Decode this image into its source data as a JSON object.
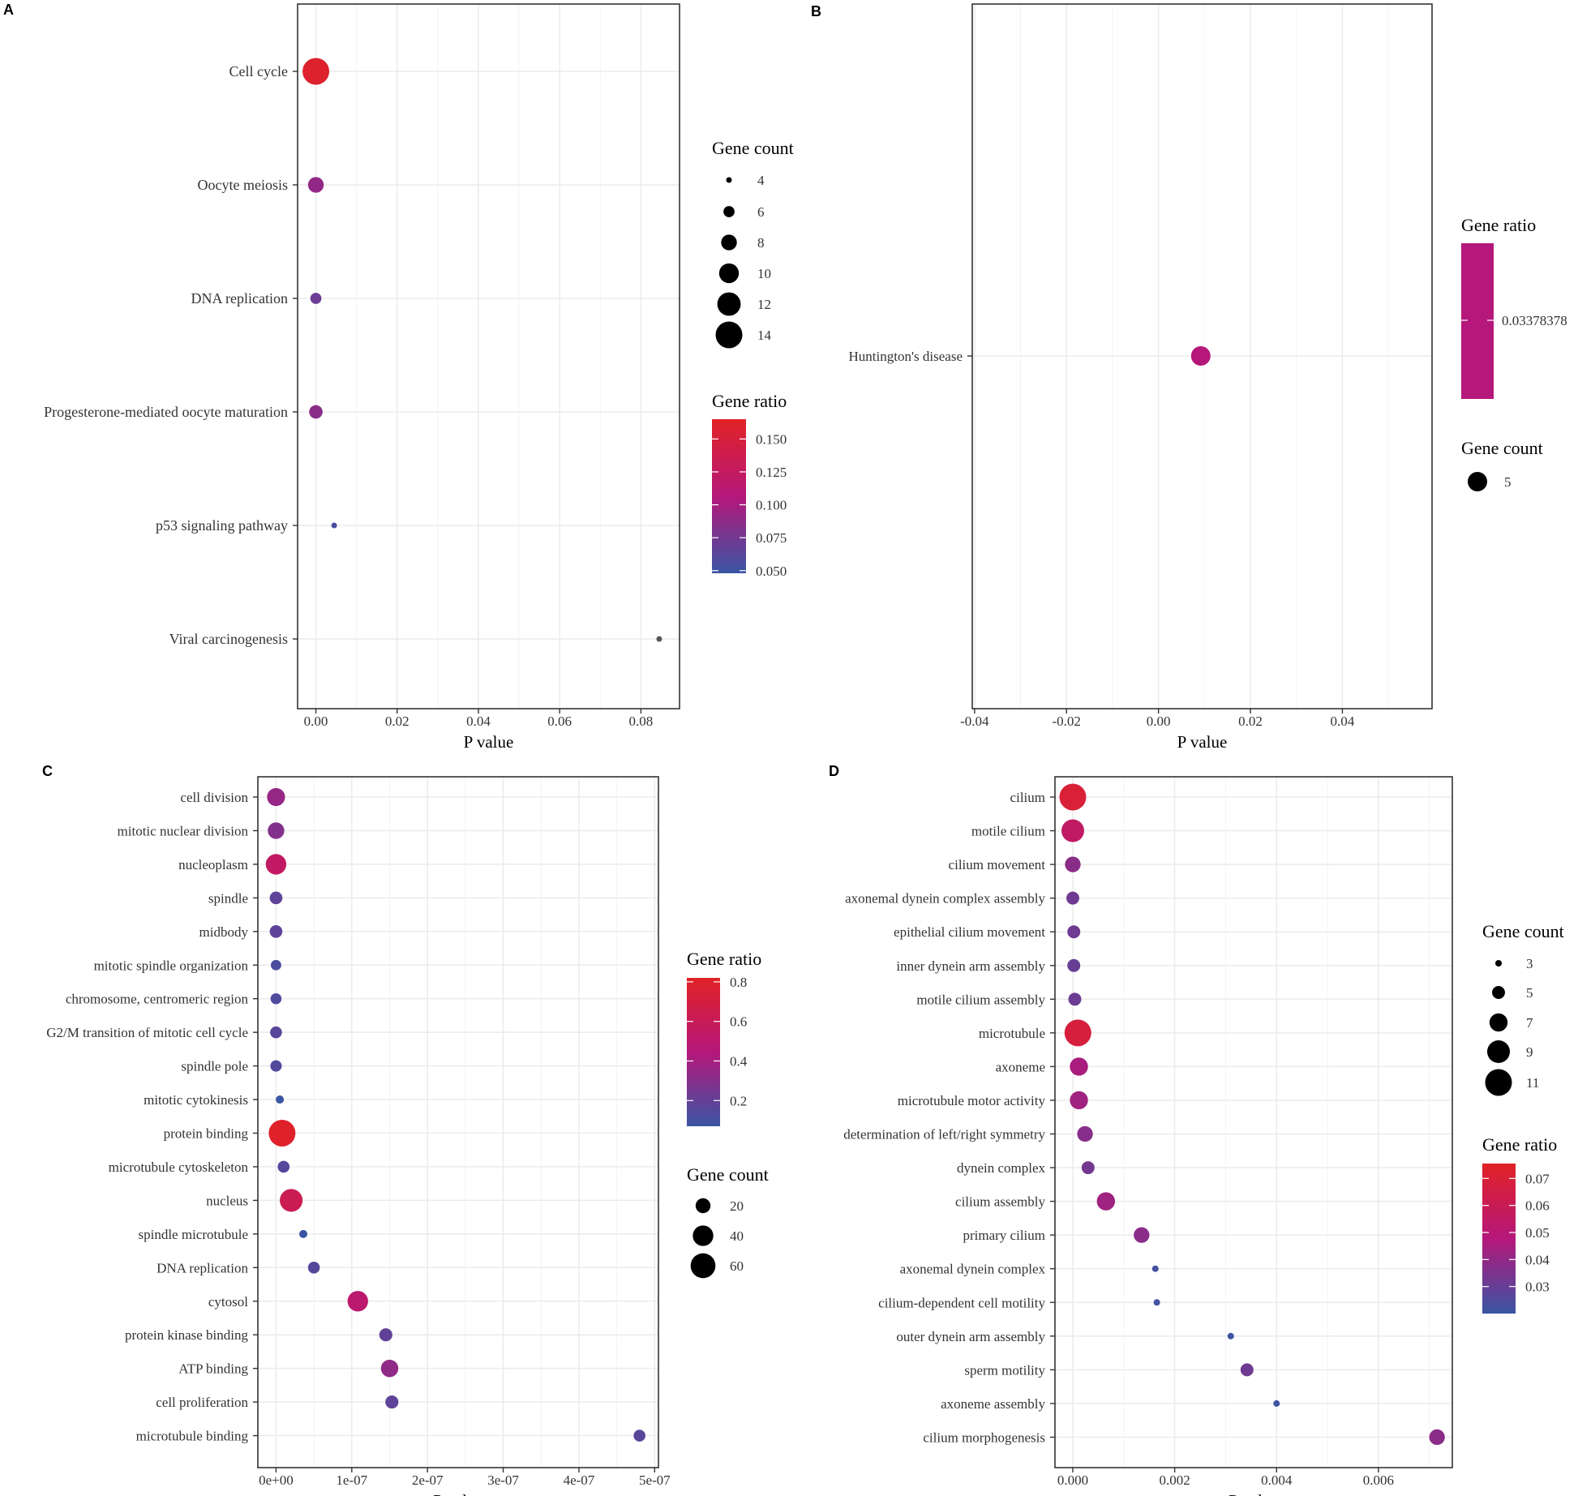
{
  "chart_data": [
    {
      "panel": "A",
      "type": "scatter",
      "xlabel": "P value",
      "xlim": [
        -0.0045,
        0.0895
      ],
      "xticks": [
        0.0,
        0.02,
        0.04,
        0.06,
        0.08
      ],
      "xtick_labels": [
        "0.00",
        "0.02",
        "0.04",
        "0.06",
        "0.08"
      ],
      "categories": [
        "Cell cycle",
        "Oocyte meiosis",
        "DNA replication",
        "Progesterone-mediated oocyte maturation",
        "p53 signaling pathway",
        "Viral carcinogenesis"
      ],
      "points": [
        {
          "term": "Cell cycle",
          "p": 0.0,
          "count": 14,
          "ratio": 0.16
        },
        {
          "term": "Oocyte meiosis",
          "p": 0.0,
          "count": 8,
          "ratio": 0.09
        },
        {
          "term": "DNA replication",
          "p": 0.0,
          "count": 6,
          "ratio": 0.072
        },
        {
          "term": "Progesterone-mediated oocyte maturation",
          "p": 0.0,
          "count": 7,
          "ratio": 0.085
        },
        {
          "term": "p53 signaling pathway",
          "p": 0.0045,
          "count": 4,
          "ratio": 0.055
        },
        {
          "term": "Viral carcinogenesis",
          "p": 0.0845,
          "count": 4,
          "ratio": null
        }
      ],
      "legend_count": {
        "title": "Gene count",
        "values": [
          4,
          6,
          8,
          10,
          12,
          14
        ],
        "labels": [
          "4",
          "6",
          "8",
          "10",
          "12",
          "14"
        ]
      },
      "legend_ratio": {
        "title": "Gene ratio",
        "min": 0.048,
        "max": 0.165,
        "ticks": [
          0.15,
          0.125,
          0.1,
          0.075,
          0.05
        ],
        "tick_labels": [
          "0.150",
          "0.125",
          "0.100",
          "0.075",
          "0.050"
        ]
      }
    },
    {
      "panel": "B",
      "type": "scatter",
      "xlabel": "P value",
      "xlim": [
        -0.0405,
        0.0595
      ],
      "xticks": [
        -0.04,
        -0.02,
        0.0,
        0.02,
        0.04
      ],
      "xtick_labels": [
        "-0.04",
        "-0.02",
        "0.00",
        "0.02",
        "0.04"
      ],
      "categories": [
        "Huntington's disease"
      ],
      "points": [
        {
          "term": "Huntington's disease",
          "p": 0.0092,
          "count": 5,
          "ratio": 0.03378378
        }
      ],
      "legend_ratio": {
        "title": "Gene ratio",
        "single_value": "0.03378378",
        "color": "#b5177a"
      },
      "legend_count": {
        "title": "Gene count",
        "values": [
          5
        ],
        "labels": [
          "5"
        ]
      }
    },
    {
      "panel": "C",
      "type": "scatter",
      "xlabel": "P value",
      "xlim": [
        -2.4e-08,
        5.05e-07
      ],
      "xticks": [
        0,
        1e-07,
        2e-07,
        3e-07,
        4e-07,
        5e-07
      ],
      "xtick_labels": [
        "0e+00",
        "1e-07",
        "2e-07",
        "3e-07",
        "4e-07",
        "5e-07"
      ],
      "categories": [
        "cell division",
        "mitotic nuclear division",
        "nucleoplasm",
        "spindle",
        "midbody",
        "mitotic spindle organization",
        "chromosome, centromeric region",
        "G2/M transition of mitotic cell cycle",
        "spindle pole",
        "mitotic cytokinesis",
        "protein binding",
        "microtubule cytoskeleton",
        "nucleus",
        "spindle microtubule",
        "DNA replication",
        "cytosol",
        "protein kinase binding",
        "ATP binding",
        "cell proliferation",
        "microtubule binding"
      ],
      "points": [
        {
          "term": "cell division",
          "p": 0.0,
          "count": 30,
          "ratio": 0.35
        },
        {
          "term": "mitotic nuclear division",
          "p": 0.0,
          "count": 25,
          "ratio": 0.29
        },
        {
          "term": "nucleoplasm",
          "p": 0.0,
          "count": 40,
          "ratio": 0.55
        },
        {
          "term": "spindle",
          "p": 0.0,
          "count": 14,
          "ratio": 0.18
        },
        {
          "term": "midbody",
          "p": 0.0,
          "count": 14,
          "ratio": 0.18
        },
        {
          "term": "mitotic spindle organization",
          "p": 0.0,
          "count": 9,
          "ratio": 0.12
        },
        {
          "term": "chromosome, centromeric region",
          "p": 0.0,
          "count": 10,
          "ratio": 0.13
        },
        {
          "term": "G2/M transition of mitotic cell cycle",
          "p": 0.0,
          "count": 12,
          "ratio": 0.16
        },
        {
          "term": "spindle pole",
          "p": 0.0,
          "count": 11,
          "ratio": 0.14
        },
        {
          "term": "mitotic cytokinesis",
          "p": 5e-09,
          "count": 5,
          "ratio": 0.07
        },
        {
          "term": "protein binding",
          "p": 8e-09,
          "count": 70,
          "ratio": 0.8
        },
        {
          "term": "microtubule cytoskeleton",
          "p": 1e-08,
          "count": 12,
          "ratio": 0.15
        },
        {
          "term": "nucleus",
          "p": 2e-08,
          "count": 50,
          "ratio": 0.62
        },
        {
          "term": "spindle microtubule",
          "p": 3.6e-08,
          "count": 5,
          "ratio": 0.07
        },
        {
          "term": "DNA replication",
          "p": 5e-08,
          "count": 12,
          "ratio": 0.15
        },
        {
          "term": "cytosol",
          "p": 1.08e-07,
          "count": 40,
          "ratio": 0.5
        },
        {
          "term": "protein kinase binding",
          "p": 1.45e-07,
          "count": 15,
          "ratio": 0.19
        },
        {
          "term": "ATP binding",
          "p": 1.5e-07,
          "count": 28,
          "ratio": 0.33
        },
        {
          "term": "cell proliferation",
          "p": 1.53e-07,
          "count": 15,
          "ratio": 0.18
        },
        {
          "term": "microtubule binding",
          "p": 4.8e-07,
          "count": 12,
          "ratio": 0.16
        }
      ],
      "legend_ratio": {
        "title": "Gene ratio",
        "min": 0.07,
        "max": 0.82,
        "ticks": [
          0.8,
          0.6,
          0.4,
          0.2
        ],
        "tick_labels": [
          "0.8",
          "0.6",
          "0.4",
          "0.2"
        ]
      },
      "legend_count": {
        "title": "Gene count",
        "values": [
          20,
          40,
          60
        ],
        "labels": [
          "20",
          "40",
          "60"
        ]
      }
    },
    {
      "panel": "D",
      "type": "scatter",
      "xlabel": "P value",
      "xlim": [
        -0.00035,
        0.00745
      ],
      "xticks": [
        0.0,
        0.002,
        0.004,
        0.006
      ],
      "xtick_labels": [
        "0.000",
        "0.002",
        "0.004",
        "0.006"
      ],
      "categories": [
        "cilium",
        "motile cilium",
        "cilium movement",
        "axonemal dynein complex assembly",
        "epithelial cilium movement",
        "inner dynein arm assembly",
        "motile cilium assembly",
        "microtubule",
        "axoneme",
        "microtubule motor activity",
        "determination of left/right symmetry",
        "dynein complex",
        "cilium assembly",
        "primary cilium",
        "axonemal dynein complex",
        "cilium-dependent cell motility",
        "outer dynein arm assembly",
        "sperm motility",
        "axoneme assembly",
        "cilium morphogenesis"
      ],
      "points": [
        {
          "term": "cilium",
          "p": 0.0,
          "count": 11,
          "ratio": 0.07
        },
        {
          "term": "motile cilium",
          "p": 0.0,
          "count": 9,
          "ratio": 0.055
        },
        {
          "term": "cilium movement",
          "p": 0.0,
          "count": 6,
          "ratio": 0.038
        },
        {
          "term": "axonemal dynein complex assembly",
          "p": 0.0,
          "count": 5,
          "ratio": 0.032
        },
        {
          "term": "epithelial cilium movement",
          "p": 2e-05,
          "count": 5,
          "ratio": 0.032
        },
        {
          "term": "inner dynein arm assembly",
          "p": 2e-05,
          "count": 5,
          "ratio": 0.03
        },
        {
          "term": "motile cilium assembly",
          "p": 4e-05,
          "count": 5,
          "ratio": 0.031
        },
        {
          "term": "microtubule",
          "p": 0.0001,
          "count": 11,
          "ratio": 0.068
        },
        {
          "term": "axoneme",
          "p": 0.00012,
          "count": 7,
          "ratio": 0.045
        },
        {
          "term": "microtubule motor activity",
          "p": 0.00012,
          "count": 7,
          "ratio": 0.043
        },
        {
          "term": "determination of left/right symmetry",
          "p": 0.00024,
          "count": 6,
          "ratio": 0.037
        },
        {
          "term": "dynein complex",
          "p": 0.0003,
          "count": 5,
          "ratio": 0.033
        },
        {
          "term": "cilium assembly",
          "p": 0.00065,
          "count": 7,
          "ratio": 0.043
        },
        {
          "term": "primary cilium",
          "p": 0.00135,
          "count": 6,
          "ratio": 0.038
        },
        {
          "term": "axonemal dynein complex",
          "p": 0.00162,
          "count": 3,
          "ratio": 0.022
        },
        {
          "term": "cilium-dependent cell motility",
          "p": 0.00165,
          "count": 3,
          "ratio": 0.022
        },
        {
          "term": "outer dynein arm assembly",
          "p": 0.0031,
          "count": 3,
          "ratio": 0.021
        },
        {
          "term": "sperm motility",
          "p": 0.00342,
          "count": 5,
          "ratio": 0.032
        },
        {
          "term": "axoneme assembly",
          "p": 0.004,
          "count": 3,
          "ratio": 0.021
        },
        {
          "term": "cilium morphogenesis",
          "p": 0.00715,
          "count": 6,
          "ratio": 0.038
        }
      ],
      "legend_count": {
        "title": "Gene count",
        "values": [
          3,
          5,
          7,
          9,
          11
        ],
        "labels": [
          "3",
          "5",
          "7",
          "9",
          "11"
        ]
      },
      "legend_ratio": {
        "title": "Gene ratio",
        "min": 0.02,
        "max": 0.0755,
        "ticks": [
          0.07,
          0.06,
          0.05,
          0.04,
          0.03
        ],
        "tick_labels": [
          "0.07",
          "0.06",
          "0.05",
          "0.04",
          "0.03"
        ]
      }
    }
  ],
  "colors": {
    "low": "#3a55a4",
    "mid": "#b5177a",
    "high": "#e12226",
    "na": "#595959",
    "grid": "#ebebeb",
    "axis": "#333333"
  }
}
